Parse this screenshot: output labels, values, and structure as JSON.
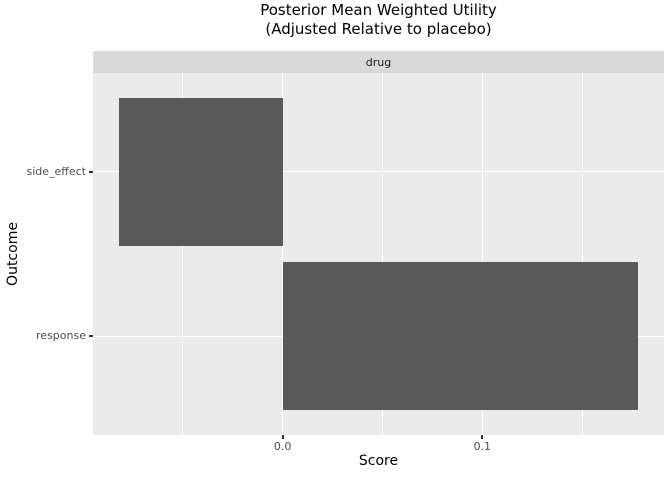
{
  "title": {
    "line1": "Posterior Mean Weighted Utility",
    "line2": "(Adjusted Relative to placebo)"
  },
  "facet": {
    "label": "drug"
  },
  "axes": {
    "x_label": "Score",
    "y_label": "Outcome"
  },
  "chart_data": {
    "type": "bar",
    "orientation": "horizontal",
    "title": "Posterior Mean Weighted Utility (Adjusted Relative to placebo)",
    "facet_label": "drug",
    "categories": [
      "side_effect",
      "response"
    ],
    "values": [
      -0.082,
      0.178
    ],
    "xlabel": "Score",
    "ylabel": "Outcome",
    "xlim": [
      -0.095,
      0.191
    ],
    "x_major_ticks": [
      {
        "value": 0.0,
        "label": "0.0"
      },
      {
        "value": 0.1,
        "label": "0.1"
      }
    ],
    "x_minor_ticks": [
      -0.05,
      0.05,
      0.15
    ],
    "grid": true,
    "legend": "none",
    "colors": {
      "bar_fill": "#595959",
      "panel_bg": "#EBEBEB",
      "strip_bg": "#D9D9D9",
      "grid": "#FFFFFF",
      "tick": "#333333",
      "axis_text": "#4D4D4D",
      "title_text": "#000000"
    }
  }
}
